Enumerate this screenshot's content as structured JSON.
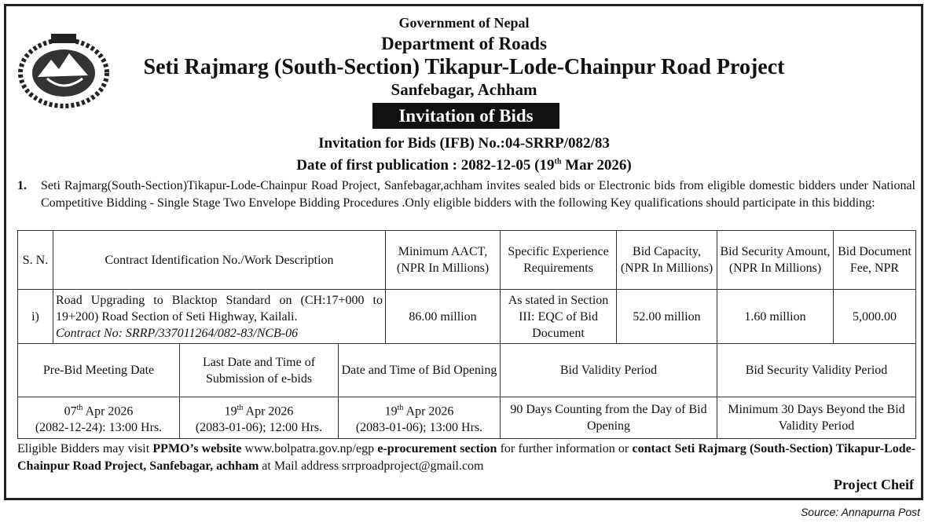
{
  "header": {
    "line1": "Government of Nepal",
    "line2": "Department of Roads",
    "line3": "Seti Rajmarg (South-Section) Tikapur-Lode-Chainpur Road Project",
    "line4": "Sanfebagar, Achham",
    "banner": "Invitation of Bids",
    "ifb": "Invitation for Bids (IFB) No.:04-SRRP/082/83",
    "pub_prefix": "Date of first publication : 2082-12-05 (19",
    "pub_sup": "th",
    "pub_suffix": " Mar 2026)"
  },
  "intro": {
    "number": "1.",
    "text": "Seti Rajmarg(South-Section)Tikapur-Lode-Chainpur Road Project, Sanfebagar,achham invites sealed bids or Electronic bids  from eligible domestic bidders under National Competitive Bidding -  Single  Stage Two Envelope Bidding Procedures .Only eligible bidders with the following Key qualifications should participate in this bidding:"
  },
  "table1": {
    "headers": [
      "S. N.",
      "Contract Identification No./Work Description",
      "Minimum AACT, (NPR In Millions)",
      "Specific Experience Requirements",
      "Bid Capacity, (NPR In Millions)",
      "Bid Security Amount, (NPR In Millions)",
      "Bid Document Fee, NPR"
    ],
    "row": {
      "sn": "i)",
      "desc": "Road Upgrading to Blacktop Standard on (CH:17+000 to 19+200) Road Section of Seti Highway, Kailali.",
      "contract": "Contract No:  SRRP/337011264/082-83/NCB-06",
      "aact": "86.00 million",
      "experience": "As stated in Section III: EQC of Bid Document",
      "capacity": "52.00 million",
      "security": "1.60 million",
      "fee": "5,000.00"
    }
  },
  "table2": {
    "headers": [
      "Pre-Bid Meeting Date",
      "Last Date and Time of Submission of e-bids",
      "Date and Time of Bid Opening",
      "Bid Validity Period",
      "Bid Security Validity Period"
    ],
    "row": [
      {
        "day": "07",
        "sup": "th",
        "rest": " Apr 2026",
        "line2": "(2082-12-24): 13:00 Hrs."
      },
      {
        "day": "19",
        "sup": "th",
        "rest": " Apr 2026",
        "line2": "(2083-01-06); 12:00 Hrs."
      },
      {
        "day": "19",
        "sup": "th",
        "rest": " Apr 2026",
        "line2": "(2083-01-06); 13:00 Hrs."
      },
      {
        "text": "90 Days Counting from the Day of Bid Opening"
      },
      {
        "text": "Minimum 30 Days Beyond the Bid Validity Period"
      }
    ]
  },
  "footer": {
    "p1": "Eligible Bidders may visit ",
    "b1": "PPMO’s website",
    "link": "www.bolpatra.gov.np/egp",
    "b2": " e-procurement section",
    "p2": " for further information or ",
    "b3": "contact  Seti Rajmarg (South-Section) Tikapur-Lode-Chainpur Road Project, Sanfebagar, achham",
    "p3": " at Mail address ",
    "email": "srrproadproject@gmail.com",
    "signature": "Project Cheif"
  },
  "source": "Source: Annapurna Post"
}
